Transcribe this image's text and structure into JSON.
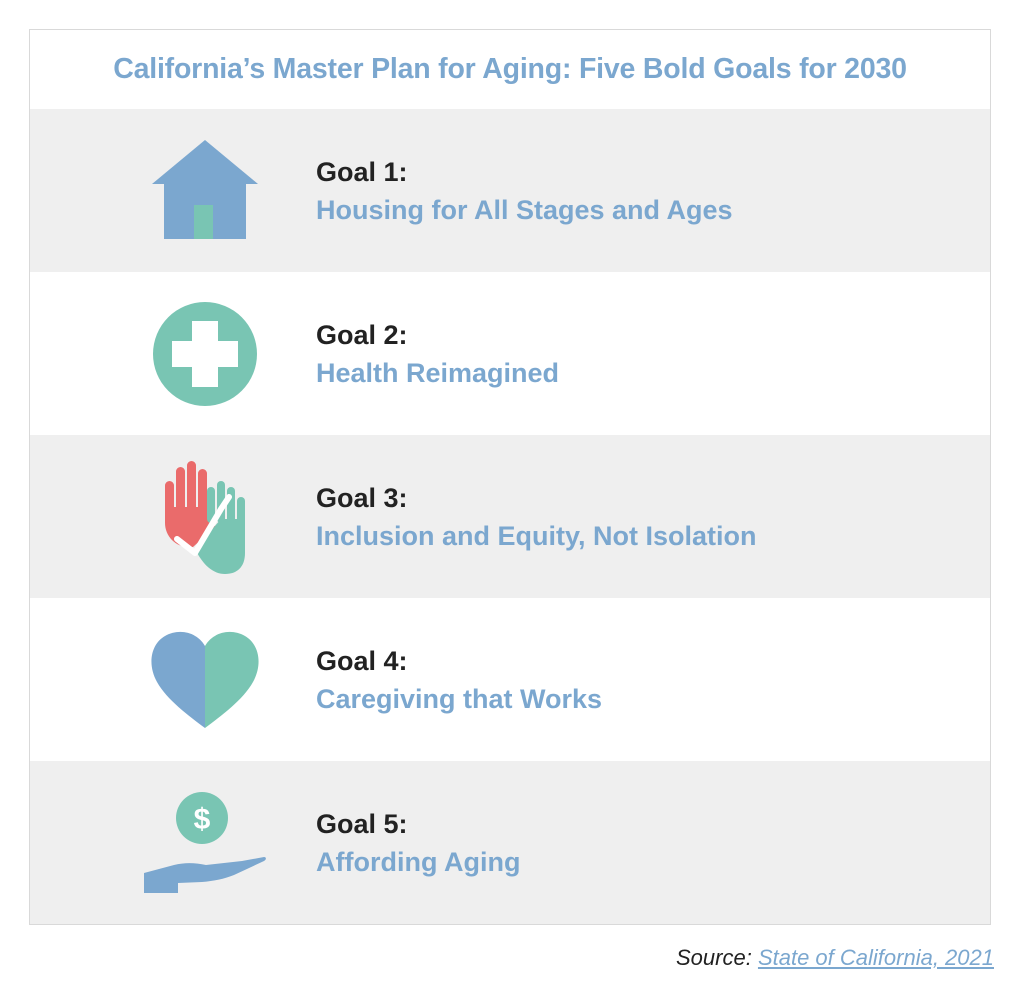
{
  "title": "California’s Master Plan for Aging: Five Bold Goals for 2030",
  "goals": [
    {
      "number": "Goal 1:",
      "name": "Housing for All Stages and Ages",
      "icon": "house-icon"
    },
    {
      "number": "Goal 2:",
      "name": "Health Reimagined",
      "icon": "medical-cross-icon"
    },
    {
      "number": "Goal 3:",
      "name": "Inclusion and Equity, Not Isolation",
      "icon": "raised-hands-icon"
    },
    {
      "number": "Goal 4:",
      "name": "Caregiving that Works",
      "icon": "heart-icon"
    },
    {
      "number": "Goal 5:",
      "name": "Affording Aging",
      "icon": "hand-coin-icon"
    }
  ],
  "source": {
    "label": "Source:",
    "link_text": "State of California, 2021"
  },
  "colors": {
    "blue": "#7ba7cf",
    "teal": "#79c5b3",
    "coral": "#ea6b6b",
    "shaded_row": "#efefef",
    "text_dark": "#222222"
  }
}
